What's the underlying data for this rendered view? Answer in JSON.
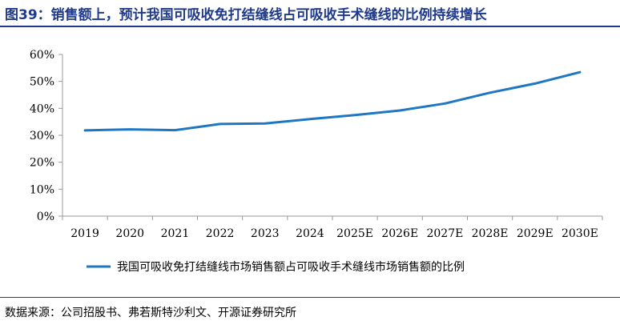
{
  "header": {
    "figure_no": "图39：",
    "title": "销售额上，预计我国可吸收免打结缝线占可吸收手术缝线的比例持续增长"
  },
  "source": "数据来源：公司招股书、弗若斯特沙利文、开源证券研究所",
  "colors": {
    "title": "#1f3a8a",
    "series": "#1f77c4",
    "axis": "#999999"
  },
  "chart_data": {
    "type": "line",
    "title": "",
    "xlabel": "",
    "ylabel": "",
    "categories": [
      "2019",
      "2020",
      "2021",
      "2022",
      "2023",
      "2024",
      "2025E",
      "2026E",
      "2027E",
      "2028E",
      "2029E",
      "2030E"
    ],
    "series": [
      {
        "name": "我国可吸收免打结缝线市场销售额占可吸收手术缝线市场销售额的比例",
        "values": [
          31.8,
          32.2,
          31.9,
          34.2,
          34.4,
          36.0,
          37.5,
          39.2,
          41.8,
          45.8,
          49.2,
          53.4
        ]
      }
    ],
    "ylim": [
      0,
      60
    ],
    "yticks": [
      "0%",
      "10%",
      "20%",
      "30%",
      "40%",
      "50%",
      "60%"
    ],
    "grid": false,
    "legend": "bottom"
  }
}
